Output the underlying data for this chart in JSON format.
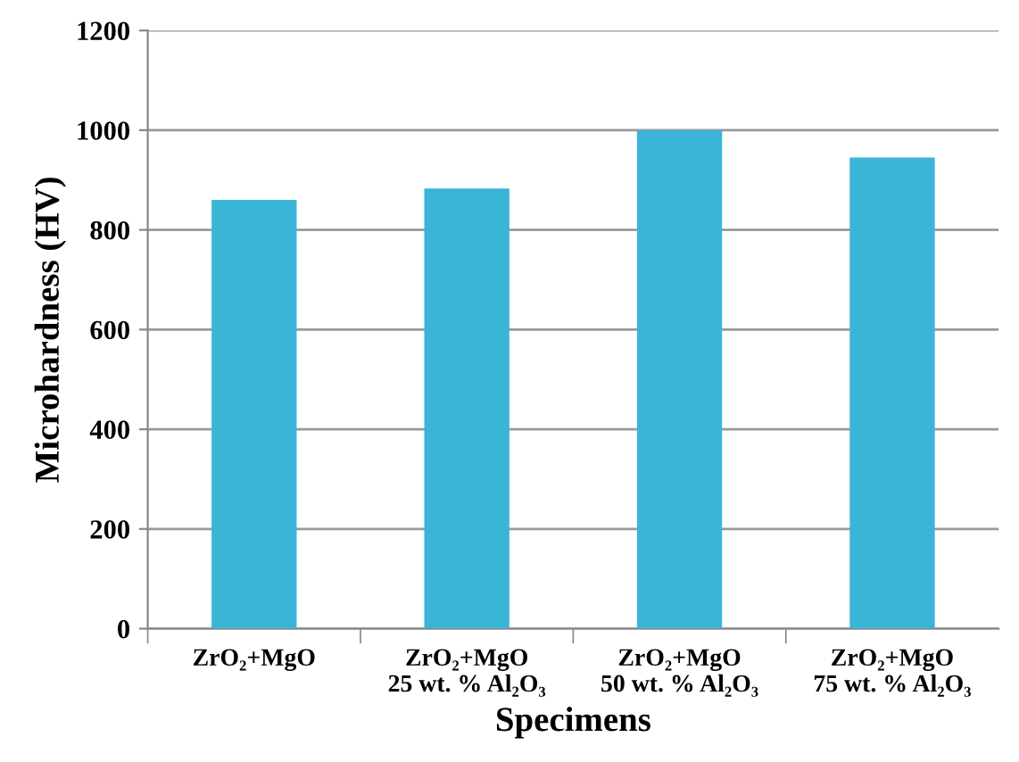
{
  "chart_data": {
    "type": "bar",
    "xlabel": "Specimens",
    "ylabel": "Microhardness (HV)",
    "categories": [
      "ZrO₂+MgO",
      "ZrO₂+MgO\n25 wt. % Al₂O₃",
      "ZrO₂+MgO\n50 wt. % Al₂O₃",
      "ZrO₂+MgO\n75 wt. % Al₂O₃"
    ],
    "values": [
      860,
      883,
      1000,
      945
    ],
    "color": "#3ab5d8",
    "ylim": [
      0,
      1200
    ],
    "yticks": [
      0,
      200,
      400,
      600,
      800,
      1000,
      1200
    ],
    "grid": "y"
  }
}
